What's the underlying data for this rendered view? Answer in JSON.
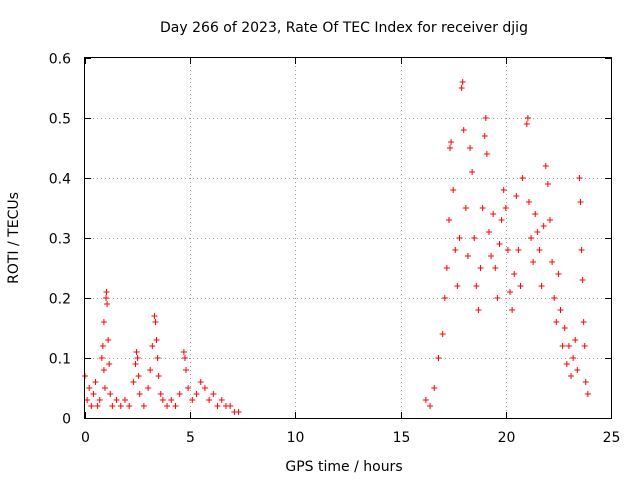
{
  "chart_data": {
    "type": "scatter",
    "title": "Day 266 of 2023, Rate Of TEC Index for receiver djig",
    "xlabel": "GPS time / hours",
    "ylabel": "ROTI / TECUs",
    "xlim": [
      0,
      25
    ],
    "ylim": [
      0,
      0.6
    ],
    "xticks": [
      "0",
      "5",
      "10",
      "15",
      "20",
      "25"
    ],
    "yticks": [
      "0",
      "0.1",
      "0.2",
      "0.3",
      "0.4",
      "0.5",
      "0.6"
    ],
    "grid": true,
    "marker": "plus",
    "color": "#ff0000",
    "series": [
      {
        "values": [
          [
            0.0,
            0.07
          ],
          [
            0.1,
            0.03
          ],
          [
            0.2,
            0.05
          ],
          [
            0.3,
            0.02
          ],
          [
            0.4,
            0.04
          ],
          [
            0.5,
            0.06
          ],
          [
            0.6,
            0.02
          ],
          [
            0.7,
            0.03
          ],
          [
            0.8,
            0.1
          ],
          [
            0.85,
            0.12
          ],
          [
            0.9,
            0.08
          ],
          [
            0.95,
            0.05
          ],
          [
            1.0,
            0.2
          ],
          [
            1.02,
            0.21
          ],
          [
            1.05,
            0.19
          ],
          [
            0.9,
            0.16
          ],
          [
            1.1,
            0.13
          ],
          [
            1.15,
            0.09
          ],
          [
            1.2,
            0.04
          ],
          [
            1.3,
            0.02
          ],
          [
            1.5,
            0.03
          ],
          [
            1.7,
            0.02
          ],
          [
            1.9,
            0.03
          ],
          [
            2.1,
            0.02
          ],
          [
            2.3,
            0.06
          ],
          [
            2.4,
            0.09
          ],
          [
            2.45,
            0.11
          ],
          [
            2.5,
            0.1
          ],
          [
            2.55,
            0.07
          ],
          [
            2.6,
            0.04
          ],
          [
            2.8,
            0.02
          ],
          [
            3.0,
            0.05
          ],
          [
            3.1,
            0.08
          ],
          [
            3.2,
            0.12
          ],
          [
            3.3,
            0.17
          ],
          [
            3.35,
            0.16
          ],
          [
            3.4,
            0.13
          ],
          [
            3.45,
            0.1
          ],
          [
            3.5,
            0.07
          ],
          [
            3.6,
            0.04
          ],
          [
            3.7,
            0.03
          ],
          [
            3.9,
            0.02
          ],
          [
            4.1,
            0.03
          ],
          [
            4.3,
            0.02
          ],
          [
            4.5,
            0.04
          ],
          [
            4.7,
            0.11
          ],
          [
            4.75,
            0.1
          ],
          [
            4.8,
            0.08
          ],
          [
            4.9,
            0.05
          ],
          [
            5.1,
            0.03
          ],
          [
            5.3,
            0.04
          ],
          [
            5.5,
            0.06
          ],
          [
            5.7,
            0.05
          ],
          [
            5.9,
            0.03
          ],
          [
            6.1,
            0.04
          ],
          [
            6.3,
            0.02
          ],
          [
            6.5,
            0.03
          ],
          [
            6.7,
            0.02
          ],
          [
            6.9,
            0.02
          ],
          [
            7.1,
            0.01
          ],
          [
            7.3,
            0.01
          ],
          [
            16.2,
            0.03
          ],
          [
            16.4,
            0.02
          ],
          [
            16.6,
            0.05
          ],
          [
            16.8,
            0.1
          ],
          [
            17.0,
            0.14
          ],
          [
            17.1,
            0.2
          ],
          [
            17.2,
            0.25
          ],
          [
            17.3,
            0.33
          ],
          [
            17.35,
            0.45
          ],
          [
            17.4,
            0.46
          ],
          [
            17.5,
            0.38
          ],
          [
            17.6,
            0.28
          ],
          [
            17.7,
            0.22
          ],
          [
            17.8,
            0.3
          ],
          [
            17.9,
            0.55
          ],
          [
            17.95,
            0.56
          ],
          [
            18.0,
            0.48
          ],
          [
            18.1,
            0.35
          ],
          [
            18.2,
            0.27
          ],
          [
            18.3,
            0.45
          ],
          [
            18.4,
            0.41
          ],
          [
            18.5,
            0.3
          ],
          [
            18.6,
            0.22
          ],
          [
            18.7,
            0.18
          ],
          [
            18.8,
            0.25
          ],
          [
            18.9,
            0.35
          ],
          [
            19.0,
            0.47
          ],
          [
            19.05,
            0.5
          ],
          [
            19.1,
            0.44
          ],
          [
            19.2,
            0.31
          ],
          [
            19.3,
            0.27
          ],
          [
            19.4,
            0.34
          ],
          [
            19.5,
            0.25
          ],
          [
            19.6,
            0.2
          ],
          [
            19.7,
            0.29
          ],
          [
            19.8,
            0.33
          ],
          [
            19.9,
            0.38
          ],
          [
            20.0,
            0.35
          ],
          [
            20.1,
            0.28
          ],
          [
            20.2,
            0.21
          ],
          [
            20.3,
            0.18
          ],
          [
            20.4,
            0.24
          ],
          [
            20.5,
            0.37
          ],
          [
            20.6,
            0.28
          ],
          [
            20.7,
            0.22
          ],
          [
            20.8,
            0.4
          ],
          [
            21.0,
            0.49
          ],
          [
            21.05,
            0.5
          ],
          [
            21.1,
            0.36
          ],
          [
            21.2,
            0.3
          ],
          [
            21.3,
            0.26
          ],
          [
            21.4,
            0.34
          ],
          [
            21.5,
            0.31
          ],
          [
            21.6,
            0.28
          ],
          [
            21.7,
            0.22
          ],
          [
            21.8,
            0.32
          ],
          [
            21.9,
            0.42
          ],
          [
            22.0,
            0.39
          ],
          [
            22.1,
            0.33
          ],
          [
            22.2,
            0.26
          ],
          [
            22.3,
            0.2
          ],
          [
            22.4,
            0.16
          ],
          [
            22.5,
            0.24
          ],
          [
            22.6,
            0.18
          ],
          [
            22.7,
            0.12
          ],
          [
            22.8,
            0.15
          ],
          [
            22.9,
            0.09
          ],
          [
            23.0,
            0.12
          ],
          [
            23.1,
            0.07
          ],
          [
            23.2,
            0.1
          ],
          [
            23.3,
            0.13
          ],
          [
            23.4,
            0.08
          ],
          [
            23.5,
            0.4
          ],
          [
            23.55,
            0.36
          ],
          [
            23.6,
            0.28
          ],
          [
            23.65,
            0.23
          ],
          [
            23.7,
            0.16
          ],
          [
            23.75,
            0.12
          ],
          [
            23.8,
            0.06
          ],
          [
            23.9,
            0.04
          ]
        ]
      }
    ]
  }
}
